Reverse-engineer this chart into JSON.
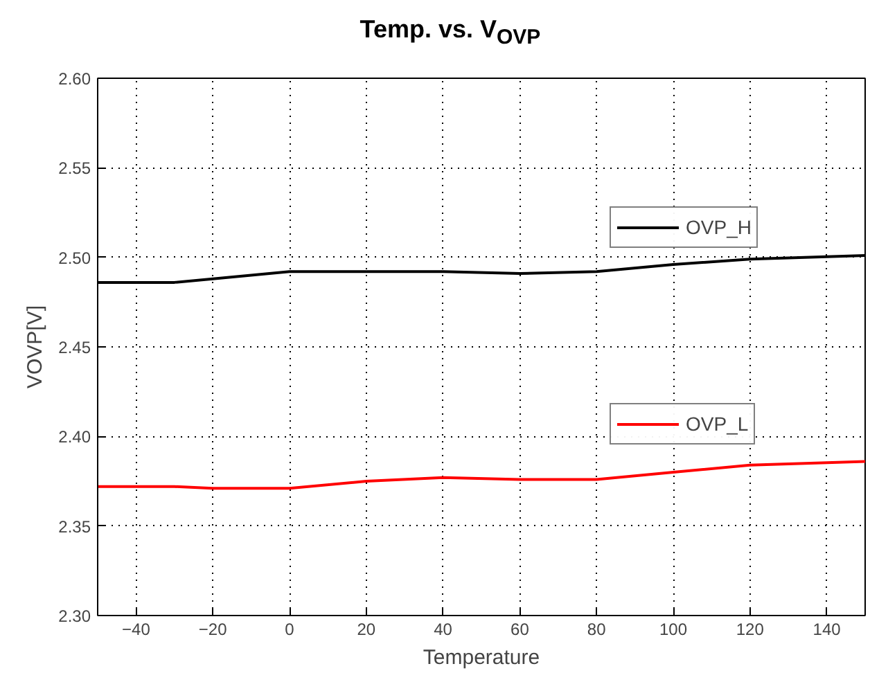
{
  "chart_data": {
    "type": "line",
    "title": "Temp. vs. V$_{OVP}$",
    "xlabel": "Temperature",
    "ylabel": "VOVP[V]",
    "x": [
      -50,
      -30,
      -20,
      0,
      20,
      40,
      60,
      80,
      100,
      120,
      150
    ],
    "series": [
      {
        "name": "OVP_H",
        "color": "#000000",
        "values": [
          2.486,
          2.486,
          2.488,
          2.492,
          2.492,
          2.492,
          2.491,
          2.492,
          2.496,
          2.499,
          2.501
        ]
      },
      {
        "name": "OVP_L",
        "color": "#ff0000",
        "values": [
          2.372,
          2.372,
          2.371,
          2.371,
          2.375,
          2.377,
          2.376,
          2.376,
          2.38,
          2.384,
          2.386
        ]
      }
    ],
    "xlim": [
      -50,
      150
    ],
    "ylim": [
      2.3,
      2.6
    ],
    "xticks": [
      -40,
      -20,
      0,
      20,
      40,
      60,
      80,
      100,
      120,
      140
    ],
    "yticks": [
      {
        "value": 2.3,
        "label": "2.30"
      },
      {
        "value": 2.35,
        "label": "2.35"
      },
      {
        "value": 2.4,
        "label": "2.40"
      },
      {
        "value": 2.45,
        "label": "2.45"
      },
      {
        "value": 2.5,
        "label": "2.50"
      },
      {
        "value": 2.55,
        "label": "2.55"
      },
      {
        "value": 2.6,
        "label": "2.60"
      }
    ],
    "grid": true,
    "legend": "right",
    "marker": "none",
    "line_style": "solid"
  }
}
